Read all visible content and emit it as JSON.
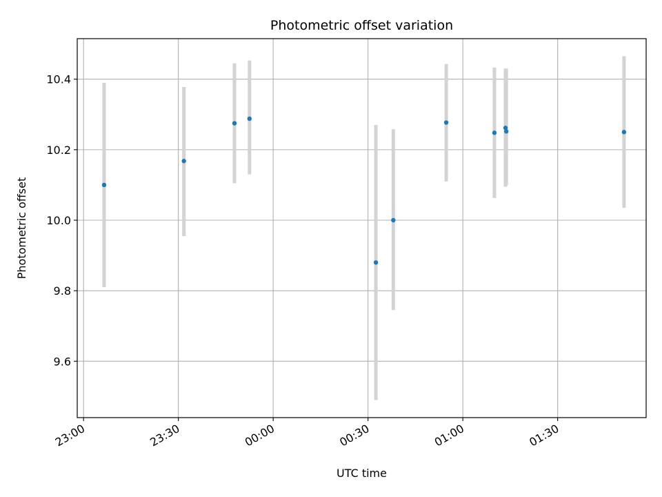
{
  "chart_data": {
    "type": "scatter",
    "title": "Photometric offset variation",
    "xlabel": "UTC time",
    "ylabel": "Photometric offset",
    "grid": true,
    "legend": "none",
    "x_ticks": [
      "23:00",
      "23:30",
      "00:00",
      "00:30",
      "01:00",
      "01:30"
    ],
    "y_ticks": [
      "9.6",
      "9.8",
      "10.0",
      "10.2",
      "10.4"
    ],
    "xlim": [
      "22:58",
      "01:58"
    ],
    "ylim": [
      9.44,
      10.515
    ],
    "series": [
      {
        "x": [
          "23:06:30",
          "23:31:45",
          "23:47:45",
          "23:52:30",
          "00:32:30",
          "00:38:00",
          "00:54:45",
          "01:10:00",
          "01:13:30",
          "01:13:45",
          "01:51:00"
        ],
        "y": [
          10.1,
          10.168,
          10.275,
          10.288,
          9.88,
          10.0,
          10.277,
          10.248,
          10.262,
          10.252,
          10.25
        ],
        "err_low": [
          9.81,
          9.955,
          10.105,
          10.13,
          9.49,
          9.745,
          10.11,
          10.063,
          10.095,
          10.1,
          10.035
        ],
        "err_high": [
          10.39,
          10.378,
          10.445,
          10.453,
          10.27,
          10.258,
          10.443,
          10.433,
          10.43,
          10.43,
          10.465
        ]
      }
    ],
    "colors": {
      "marker": "#1f77b4",
      "errorbar": "#d3d3d3",
      "grid": "#b0b0b0",
      "axis": "#000000"
    }
  }
}
